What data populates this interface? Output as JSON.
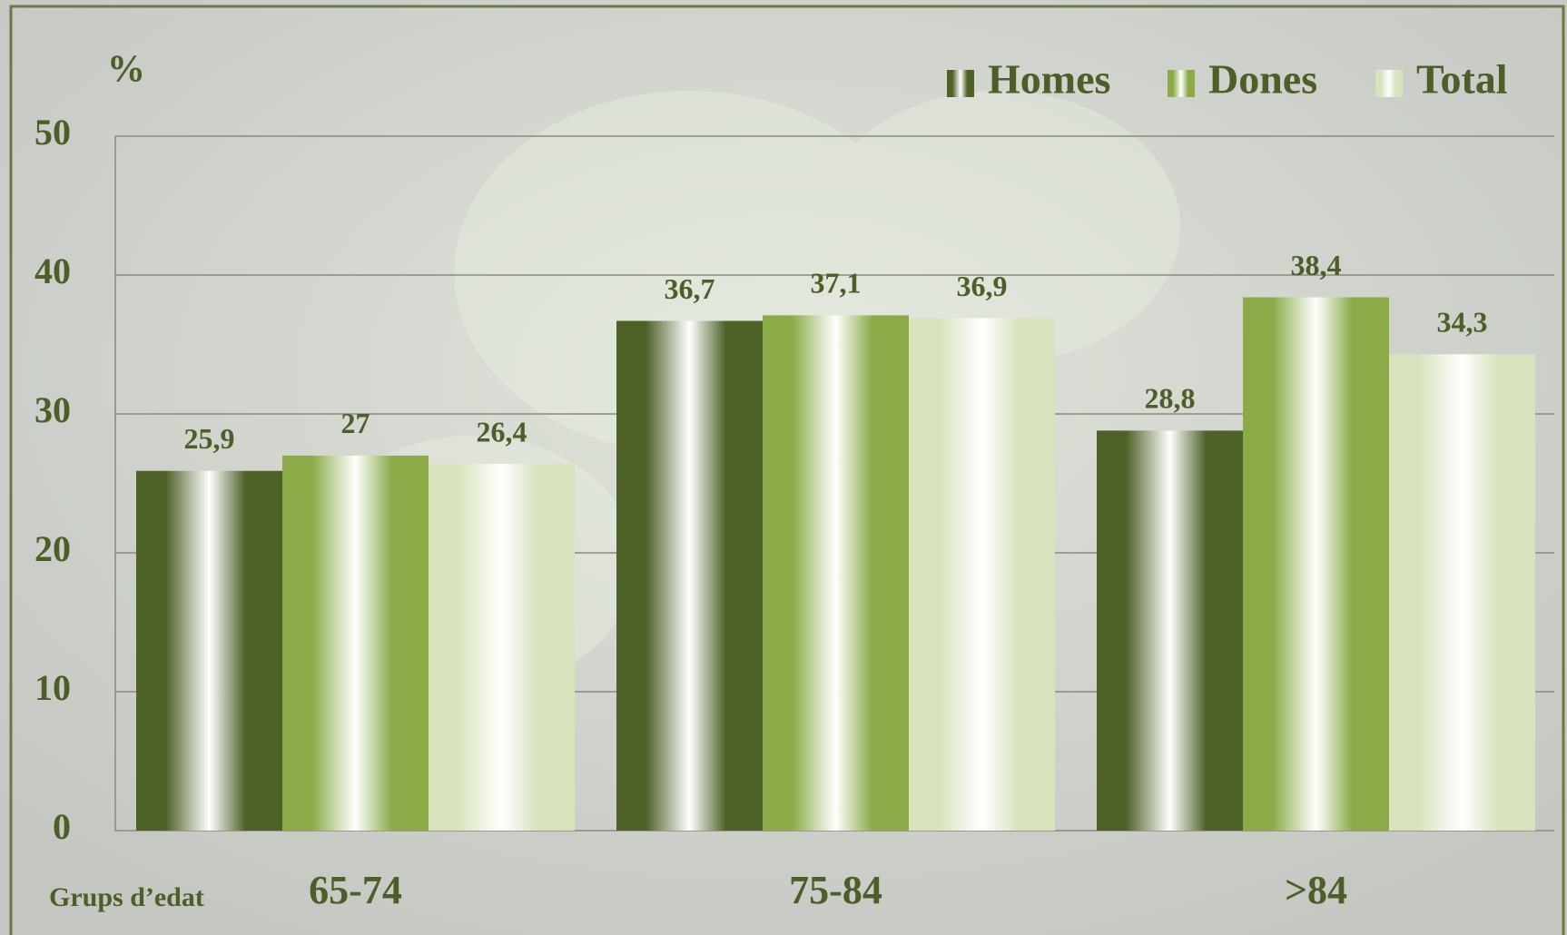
{
  "chart_data": {
    "type": "bar",
    "y_label": "%",
    "x_label": "Grups d’edat",
    "categories": [
      "65-74",
      "75-84",
      ">84"
    ],
    "series": [
      {
        "name": "Homes",
        "color": "#4e6127",
        "values": [
          25.9,
          36.7,
          28.8
        ],
        "value_labels": [
          "25,9",
          "36,7",
          "28,8"
        ]
      },
      {
        "name": "Dones",
        "color": "#8aab48",
        "values": [
          27,
          37.1,
          38.4
        ],
        "value_labels": [
          "27",
          "37,1",
          "38,4"
        ]
      },
      {
        "name": "Total",
        "color": "#d6e3bd",
        "values": [
          26.4,
          36.9,
          34.3
        ],
        "value_labels": [
          "26,4",
          "36,9",
          "34,3"
        ]
      }
    ],
    "ylim": [
      0,
      50
    ],
    "yticks": [
      0,
      10,
      20,
      30,
      40,
      50
    ],
    "grid": true,
    "legend": "top-right"
  }
}
